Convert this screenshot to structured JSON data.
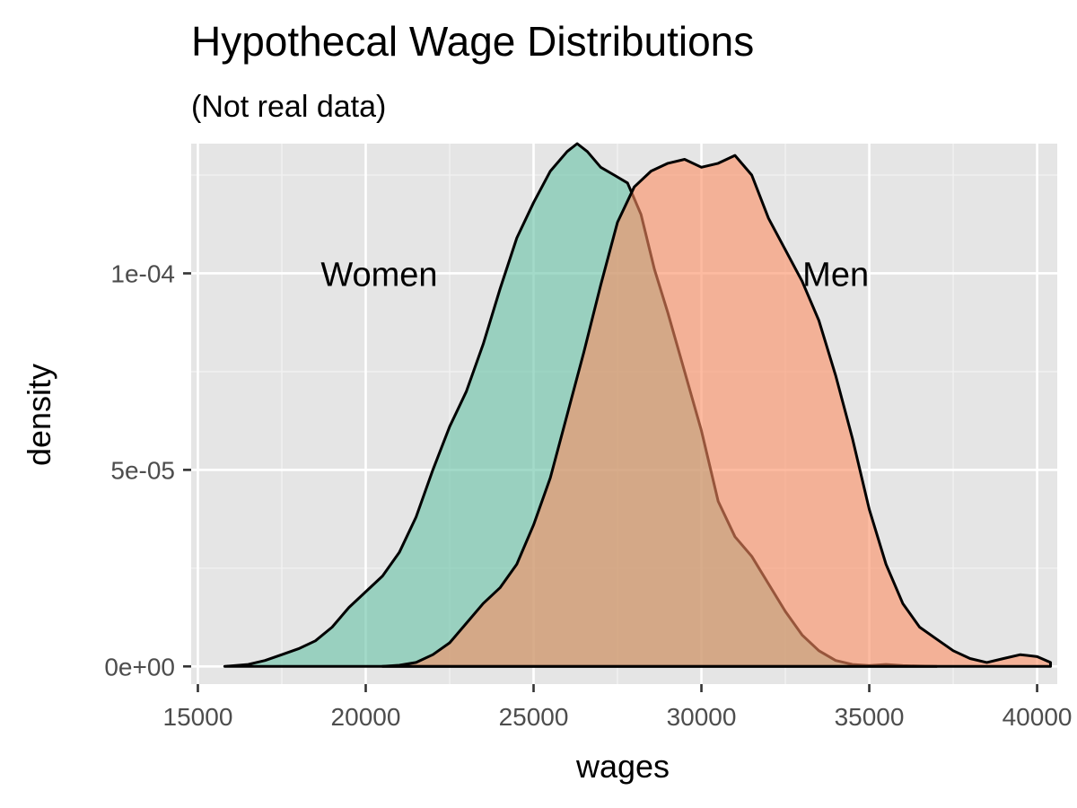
{
  "chart_data": {
    "type": "area",
    "title": "Hypothecal Wage Distributions",
    "subtitle": "(Not real data)",
    "xlabel": "wages",
    "ylabel": "density",
    "xlim": [
      14800,
      40600
    ],
    "ylim": [
      -4.5e-06,
      0.000133
    ],
    "x_ticks": [
      15000,
      20000,
      25000,
      30000,
      35000,
      40000
    ],
    "x_tick_labels": [
      "15000",
      "20000",
      "25000",
      "30000",
      "35000",
      "40000"
    ],
    "y_ticks": [
      0,
      5e-05,
      0.0001
    ],
    "y_tick_labels": [
      "0e+00",
      "5e-05",
      "1e-04"
    ],
    "grid": true,
    "legend": "none",
    "series": [
      {
        "name": "Women",
        "color": "#66c2a5",
        "x": [
          15800,
          16500,
          17000,
          17500,
          18000,
          18500,
          19000,
          19500,
          20000,
          20500,
          21000,
          21500,
          22000,
          22500,
          23000,
          23500,
          24000,
          24500,
          25000,
          25500,
          26000,
          26300,
          26600,
          27000,
          27400,
          27800,
          28200,
          28600,
          29000,
          29500,
          30000,
          30500,
          31000,
          31500,
          32000,
          32500,
          33000,
          33500,
          34000,
          34500,
          35000,
          35500,
          36000,
          36500,
          37000
        ],
        "y": [
          0,
          5e-07,
          1.5e-06,
          3e-06,
          4.5e-06,
          6.5e-06,
          1e-05,
          1.5e-05,
          1.9e-05,
          2.3e-05,
          2.9e-05,
          3.8e-05,
          5e-05,
          6.1e-05,
          7e-05,
          8.2e-05,
          9.6e-05,
          0.000109,
          0.000118,
          0.000126,
          0.000131,
          0.000133,
          0.000131,
          0.000127,
          0.000125,
          0.000123,
          0.000115,
          0.000101,
          9e-05,
          7.5e-05,
          6e-05,
          4.2e-05,
          3.3e-05,
          2.8e-05,
          2.1e-05,
          1.4e-05,
          8e-06,
          4e-06,
          1.5e-06,
          5e-07,
          2e-07,
          5e-07,
          2e-07,
          1e-07,
          0
        ]
      },
      {
        "name": "Men",
        "color": "#fc8d62",
        "x": [
          20500,
          21000,
          21500,
          22000,
          22500,
          23000,
          23500,
          24000,
          24500,
          25000,
          25500,
          26000,
          26500,
          27000,
          27500,
          28000,
          28500,
          29000,
          29500,
          30000,
          30500,
          31000,
          31500,
          32000,
          32500,
          33000,
          33500,
          34000,
          34500,
          35000,
          35500,
          36000,
          36500,
          37000,
          37500,
          38000,
          38500,
          39000,
          39500,
          40000,
          40400
        ],
        "y": [
          0,
          3e-07,
          1e-06,
          3e-06,
          6e-06,
          1.1e-05,
          1.6e-05,
          2e-05,
          2.6e-05,
          3.6e-05,
          4.8e-05,
          6.4e-05,
          8e-05,
          9.7e-05,
          0.000113,
          0.000122,
          0.000126,
          0.000128,
          0.000129,
          0.000127,
          0.000128,
          0.00013,
          0.000125,
          0.000114,
          0.000106,
          9.8e-05,
          8.8e-05,
          7.4e-05,
          5.8e-05,
          4e-05,
          2.6e-05,
          1.6e-05,
          1e-05,
          7e-06,
          4e-06,
          2e-06,
          1e-06,
          2e-06,
          3e-06,
          2.5e-06,
          1e-06
        ]
      }
    ],
    "annotations": [
      {
        "text": "Women",
        "x": 20400,
        "y": 0.0001
      },
      {
        "text": "Men",
        "x": 34000,
        "y": 0.0001
      }
    ]
  }
}
